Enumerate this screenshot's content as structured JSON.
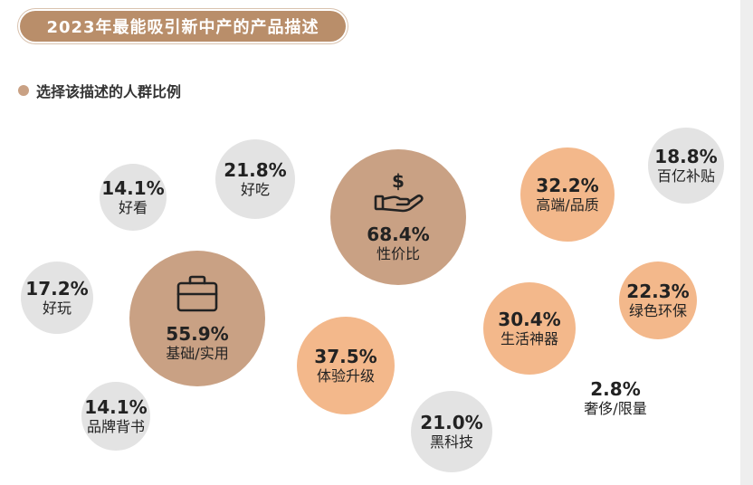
{
  "title": "2023年最能吸引新中产的产品描述",
  "legend": {
    "label": "选择该描述的人群比例"
  },
  "colors": {
    "title_bg": "#b98e6a",
    "legend_dot": "#c9a184",
    "gray": "#e3e3e3",
    "tan": "#c9a184",
    "peach": "#f3b88b"
  },
  "chart_data": {
    "type": "bubble",
    "title": "2023年最能吸引新中产的产品描述",
    "legend": "选择该描述的人群比例",
    "items": [
      {
        "id": "xingjiabi",
        "label": "性价比",
        "value": 68.4,
        "pct": "68.4%",
        "color": "tan",
        "icon": "money-hand-icon"
      },
      {
        "id": "jichu",
        "label": "基础/实用",
        "value": 55.9,
        "pct": "55.9%",
        "color": "tan",
        "icon": "briefcase-icon"
      },
      {
        "id": "tiyan",
        "label": "体验升级",
        "value": 37.5,
        "pct": "37.5%",
        "color": "peach"
      },
      {
        "id": "gaoduan",
        "label": "高端/品质",
        "value": 32.2,
        "pct": "32.2%",
        "color": "peach"
      },
      {
        "id": "shenghuo",
        "label": "生活神器",
        "value": 30.4,
        "pct": "30.4%",
        "color": "peach"
      },
      {
        "id": "lvse",
        "label": "绿色环保",
        "value": 22.3,
        "pct": "22.3%",
        "color": "peach"
      },
      {
        "id": "haochi",
        "label": "好吃",
        "value": 21.8,
        "pct": "21.8%",
        "color": "gray"
      },
      {
        "id": "heikeji",
        "label": "黑科技",
        "value": 21.0,
        "pct": "21.0%",
        "color": "gray"
      },
      {
        "id": "baiyi",
        "label": "百亿补贴",
        "value": 18.8,
        "pct": "18.8%",
        "color": "gray"
      },
      {
        "id": "haowan",
        "label": "好玩",
        "value": 17.2,
        "pct": "17.2%",
        "color": "gray"
      },
      {
        "id": "haokan",
        "label": "好看",
        "value": 14.1,
        "pct": "14.1%",
        "color": "gray"
      },
      {
        "id": "pinpai",
        "label": "品牌背书",
        "value": 14.1,
        "pct": "14.1%",
        "color": "gray"
      },
      {
        "id": "shechi",
        "label": "奢侈/限量",
        "value": 2.8,
        "pct": "2.8%",
        "color": "none"
      }
    ]
  }
}
